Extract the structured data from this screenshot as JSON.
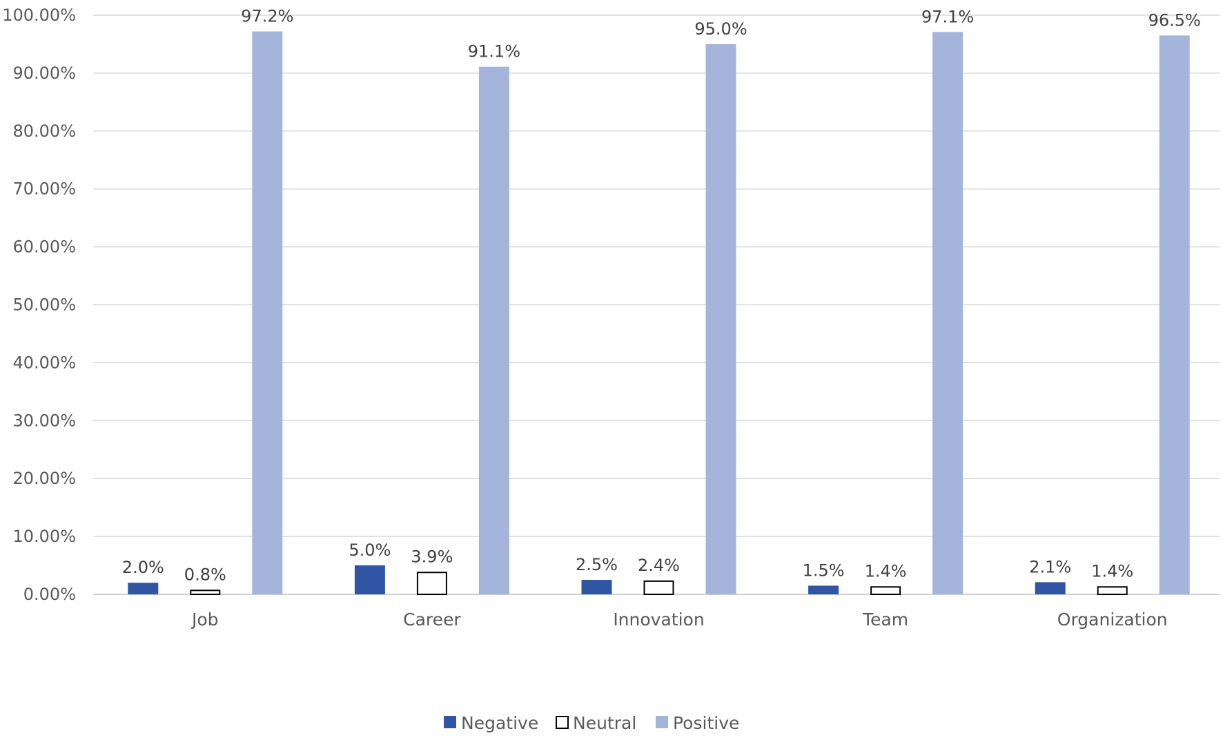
{
  "chart_data": {
    "type": "bar",
    "title": "",
    "xlabel": "",
    "ylabel": "",
    "categories": [
      "Job",
      "Career",
      "Innovation",
      "Team",
      "Organization"
    ],
    "series": [
      {
        "name": "Negative",
        "values": [
          2.0,
          5.0,
          2.5,
          1.5,
          2.1
        ],
        "labels": [
          "2.0%",
          "5.0%",
          "2.5%",
          "1.5%",
          "2.1%"
        ],
        "color": "#2f55a4",
        "style": "filled"
      },
      {
        "name": "Neutral",
        "values": [
          0.8,
          3.9,
          2.4,
          1.4,
          1.4
        ],
        "labels": [
          "0.8%",
          "3.9%",
          "2.4%",
          "1.4%",
          "1.4%"
        ],
        "color": "#ffffff",
        "stroke": "#000000",
        "style": "outlined"
      },
      {
        "name": "Positive",
        "values": [
          97.2,
          91.1,
          95.0,
          97.1,
          96.5
        ],
        "labels": [
          "97.2%",
          "91.1%",
          "95.0%",
          "97.1%",
          "96.5%"
        ],
        "color": "#a5b4da",
        "style": "filled"
      }
    ],
    "ylim": [
      0,
      100
    ],
    "yticks": [
      0,
      10,
      20,
      30,
      40,
      50,
      60,
      70,
      80,
      90,
      100
    ],
    "ytick_labels": [
      "0.00%",
      "10.00%",
      "20.00%",
      "30.00%",
      "40.00%",
      "50.00%",
      "60.00%",
      "70.00%",
      "80.00%",
      "90.00%",
      "100.00%"
    ],
    "grid": true,
    "legend_position": "bottom-center"
  }
}
